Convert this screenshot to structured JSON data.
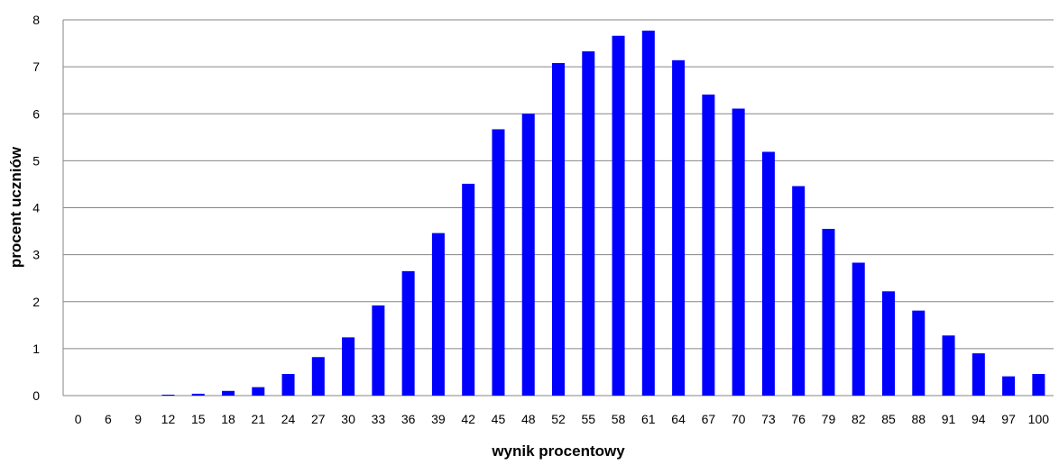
{
  "chart_data": {
    "type": "bar",
    "title": "",
    "xlabel": "wynik procentowy",
    "ylabel": "procent uczniów",
    "ylim": [
      0,
      8
    ],
    "y_ticks": [
      0,
      1,
      2,
      3,
      4,
      5,
      6,
      7,
      8
    ],
    "grid": "horizontal",
    "categories": [
      "0",
      "6",
      "9",
      "12",
      "15",
      "18",
      "21",
      "24",
      "27",
      "30",
      "33",
      "36",
      "39",
      "42",
      "45",
      "48",
      "52",
      "55",
      "58",
      "61",
      "64",
      "67",
      "70",
      "73",
      "76",
      "79",
      "82",
      "85",
      "88",
      "91",
      "94",
      "97",
      "100"
    ],
    "values": [
      0,
      0,
      0,
      0.02,
      0.04,
      0.1,
      0.18,
      0.46,
      0.82,
      1.24,
      1.92,
      2.65,
      3.46,
      4.51,
      5.67,
      6.0,
      7.08,
      7.33,
      7.66,
      7.77,
      7.14,
      6.41,
      6.11,
      5.19,
      4.46,
      3.55,
      2.83,
      2.22,
      1.81,
      1.28,
      0.9,
      0.41,
      0.46
    ],
    "bar_color": "#0000FF",
    "grid_color": "#868686"
  }
}
